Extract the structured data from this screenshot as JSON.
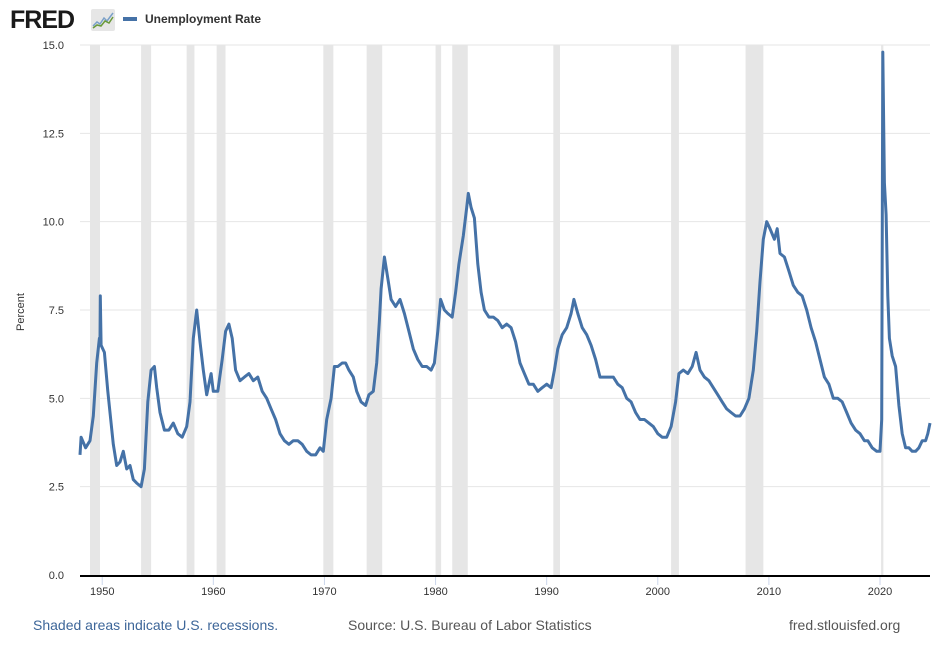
{
  "header": {
    "logo_text": "FRED",
    "logo_icon": "line-chart-icon",
    "legend_label": "Unemployment Rate"
  },
  "footer": {
    "recession_note": "Shaded areas indicate U.S. recessions.",
    "source": "Source: U.S. Bureau of Labor Statistics",
    "site": "fred.stlouisfed.org"
  },
  "colors": {
    "series": "#4572a7",
    "recession": "#e6e6e6",
    "grid": "#e6e6e6",
    "axis": "#000000"
  },
  "chart_data": {
    "type": "line",
    "title": "",
    "xlabel": "",
    "ylabel": "Percent",
    "xlim": [
      1948.0,
      2024.5
    ],
    "ylim": [
      0,
      15
    ],
    "grid": true,
    "legend": "top-left",
    "y_ticks": [
      "0.0",
      "2.5",
      "5.0",
      "7.5",
      "10.0",
      "12.5",
      "15.0"
    ],
    "y_tick_values": [
      0,
      2.5,
      5,
      7.5,
      10,
      12.5,
      15
    ],
    "x_ticks": [
      "1950",
      "1960",
      "1970",
      "1980",
      "1990",
      "2000",
      "2010",
      "2020"
    ],
    "x_tick_values": [
      1950,
      1960,
      1970,
      1980,
      1990,
      2000,
      2010,
      2020
    ],
    "recessions": [
      [
        1948.9,
        1949.8
      ],
      [
        1953.5,
        1954.4
      ],
      [
        1957.6,
        1958.3
      ],
      [
        1960.3,
        1961.1
      ],
      [
        1969.9,
        1970.8
      ],
      [
        1973.8,
        1975.2
      ],
      [
        1980.0,
        1980.5
      ],
      [
        1981.5,
        1982.9
      ],
      [
        1990.6,
        1991.2
      ],
      [
        2001.2,
        2001.9
      ],
      [
        2007.9,
        2009.5
      ],
      [
        2020.1,
        2020.3
      ]
    ],
    "series": [
      {
        "name": "Unemployment Rate",
        "points": [
          [
            1948.0,
            3.4
          ],
          [
            1948.1,
            3.9
          ],
          [
            1948.5,
            3.6
          ],
          [
            1948.9,
            3.8
          ],
          [
            1949.2,
            4.5
          ],
          [
            1949.5,
            6.0
          ],
          [
            1949.75,
            6.7
          ],
          [
            1949.8,
            6.6
          ],
          [
            1949.83,
            7.9
          ],
          [
            1949.9,
            6.5
          ],
          [
            1950.2,
            6.3
          ],
          [
            1950.5,
            5.2
          ],
          [
            1950.8,
            4.3
          ],
          [
            1951.0,
            3.7
          ],
          [
            1951.3,
            3.1
          ],
          [
            1951.6,
            3.2
          ],
          [
            1951.9,
            3.5
          ],
          [
            1952.2,
            3.0
          ],
          [
            1952.5,
            3.1
          ],
          [
            1952.8,
            2.7
          ],
          [
            1953.1,
            2.6
          ],
          [
            1953.5,
            2.5
          ],
          [
            1953.8,
            3.0
          ],
          [
            1954.1,
            4.9
          ],
          [
            1954.4,
            5.8
          ],
          [
            1954.7,
            5.9
          ],
          [
            1954.9,
            5.3
          ],
          [
            1955.2,
            4.6
          ],
          [
            1955.6,
            4.1
          ],
          [
            1956.0,
            4.1
          ],
          [
            1956.4,
            4.3
          ],
          [
            1956.8,
            4.0
          ],
          [
            1957.2,
            3.9
          ],
          [
            1957.6,
            4.2
          ],
          [
            1957.9,
            4.9
          ],
          [
            1958.2,
            6.7
          ],
          [
            1958.5,
            7.5
          ],
          [
            1958.8,
            6.6
          ],
          [
            1959.1,
            5.8
          ],
          [
            1959.4,
            5.1
          ],
          [
            1959.8,
            5.7
          ],
          [
            1960.0,
            5.2
          ],
          [
            1960.4,
            5.2
          ],
          [
            1960.8,
            6.1
          ],
          [
            1961.1,
            6.9
          ],
          [
            1961.4,
            7.1
          ],
          [
            1961.7,
            6.7
          ],
          [
            1962.0,
            5.8
          ],
          [
            1962.4,
            5.5
          ],
          [
            1962.8,
            5.6
          ],
          [
            1963.2,
            5.7
          ],
          [
            1963.6,
            5.5
          ],
          [
            1964.0,
            5.6
          ],
          [
            1964.4,
            5.2
          ],
          [
            1964.8,
            5.0
          ],
          [
            1965.2,
            4.7
          ],
          [
            1965.6,
            4.4
          ],
          [
            1966.0,
            4.0
          ],
          [
            1966.4,
            3.8
          ],
          [
            1966.8,
            3.7
          ],
          [
            1967.2,
            3.8
          ],
          [
            1967.6,
            3.8
          ],
          [
            1968.0,
            3.7
          ],
          [
            1968.4,
            3.5
          ],
          [
            1968.8,
            3.4
          ],
          [
            1969.2,
            3.4
          ],
          [
            1969.6,
            3.6
          ],
          [
            1969.9,
            3.5
          ],
          [
            1970.2,
            4.4
          ],
          [
            1970.6,
            5.0
          ],
          [
            1970.9,
            5.9
          ],
          [
            1971.2,
            5.9
          ],
          [
            1971.6,
            6.0
          ],
          [
            1971.9,
            6.0
          ],
          [
            1972.2,
            5.8
          ],
          [
            1972.6,
            5.6
          ],
          [
            1972.9,
            5.2
          ],
          [
            1973.3,
            4.9
          ],
          [
            1973.7,
            4.8
          ],
          [
            1974.0,
            5.1
          ],
          [
            1974.4,
            5.2
          ],
          [
            1974.7,
            6.0
          ],
          [
            1974.95,
            7.2
          ],
          [
            1975.1,
            8.1
          ],
          [
            1975.4,
            9.0
          ],
          [
            1975.7,
            8.4
          ],
          [
            1976.0,
            7.8
          ],
          [
            1976.4,
            7.6
          ],
          [
            1976.8,
            7.8
          ],
          [
            1977.2,
            7.4
          ],
          [
            1977.6,
            6.9
          ],
          [
            1978.0,
            6.4
          ],
          [
            1978.4,
            6.1
          ],
          [
            1978.8,
            5.9
          ],
          [
            1979.2,
            5.9
          ],
          [
            1979.6,
            5.8
          ],
          [
            1979.9,
            6.0
          ],
          [
            1980.2,
            6.9
          ],
          [
            1980.45,
            7.8
          ],
          [
            1980.8,
            7.5
          ],
          [
            1981.1,
            7.4
          ],
          [
            1981.5,
            7.3
          ],
          [
            1981.8,
            8.0
          ],
          [
            1982.1,
            8.8
          ],
          [
            1982.5,
            9.6
          ],
          [
            1982.8,
            10.4
          ],
          [
            1982.95,
            10.8
          ],
          [
            1983.2,
            10.4
          ],
          [
            1983.5,
            10.1
          ],
          [
            1983.8,
            8.8
          ],
          [
            1984.1,
            8.0
          ],
          [
            1984.4,
            7.5
          ],
          [
            1984.8,
            7.3
          ],
          [
            1985.2,
            7.3
          ],
          [
            1985.6,
            7.2
          ],
          [
            1986.0,
            7.0
          ],
          [
            1986.4,
            7.1
          ],
          [
            1986.8,
            7.0
          ],
          [
            1987.2,
            6.6
          ],
          [
            1987.6,
            6.0
          ],
          [
            1988.0,
            5.7
          ],
          [
            1988.4,
            5.4
          ],
          [
            1988.8,
            5.4
          ],
          [
            1989.2,
            5.2
          ],
          [
            1989.6,
            5.3
          ],
          [
            1990.0,
            5.4
          ],
          [
            1990.4,
            5.3
          ],
          [
            1990.7,
            5.8
          ],
          [
            1991.0,
            6.4
          ],
          [
            1991.4,
            6.8
          ],
          [
            1991.8,
            7.0
          ],
          [
            1992.2,
            7.4
          ],
          [
            1992.45,
            7.8
          ],
          [
            1992.8,
            7.4
          ],
          [
            1993.2,
            7.0
          ],
          [
            1993.6,
            6.8
          ],
          [
            1994.0,
            6.5
          ],
          [
            1994.4,
            6.1
          ],
          [
            1994.8,
            5.6
          ],
          [
            1995.2,
            5.6
          ],
          [
            1995.6,
            5.6
          ],
          [
            1996.0,
            5.6
          ],
          [
            1996.4,
            5.4
          ],
          [
            1996.8,
            5.3
          ],
          [
            1997.2,
            5.0
          ],
          [
            1997.6,
            4.9
          ],
          [
            1998.0,
            4.6
          ],
          [
            1998.4,
            4.4
          ],
          [
            1998.8,
            4.4
          ],
          [
            1999.2,
            4.3
          ],
          [
            1999.6,
            4.2
          ],
          [
            2000.0,
            4.0
          ],
          [
            2000.4,
            3.9
          ],
          [
            2000.8,
            3.9
          ],
          [
            2001.2,
            4.2
          ],
          [
            2001.6,
            4.9
          ],
          [
            2001.9,
            5.7
          ],
          [
            2002.3,
            5.8
          ],
          [
            2002.7,
            5.7
          ],
          [
            2003.1,
            5.9
          ],
          [
            2003.45,
            6.3
          ],
          [
            2003.8,
            5.8
          ],
          [
            2004.2,
            5.6
          ],
          [
            2004.6,
            5.5
          ],
          [
            2005.0,
            5.3
          ],
          [
            2005.4,
            5.1
          ],
          [
            2005.8,
            4.9
          ],
          [
            2006.2,
            4.7
          ],
          [
            2006.6,
            4.6
          ],
          [
            2007.0,
            4.5
          ],
          [
            2007.4,
            4.5
          ],
          [
            2007.8,
            4.7
          ],
          [
            2008.2,
            5.0
          ],
          [
            2008.6,
            5.8
          ],
          [
            2008.9,
            6.9
          ],
          [
            2009.2,
            8.3
          ],
          [
            2009.5,
            9.5
          ],
          [
            2009.8,
            10.0
          ],
          [
            2010.1,
            9.8
          ],
          [
            2010.5,
            9.5
          ],
          [
            2010.75,
            9.8
          ],
          [
            2011.0,
            9.1
          ],
          [
            2011.4,
            9.0
          ],
          [
            2011.8,
            8.6
          ],
          [
            2012.2,
            8.2
          ],
          [
            2012.6,
            8.0
          ],
          [
            2013.0,
            7.9
          ],
          [
            2013.4,
            7.5
          ],
          [
            2013.8,
            7.0
          ],
          [
            2014.2,
            6.6
          ],
          [
            2014.6,
            6.1
          ],
          [
            2015.0,
            5.6
          ],
          [
            2015.4,
            5.4
          ],
          [
            2015.8,
            5.0
          ],
          [
            2016.2,
            5.0
          ],
          [
            2016.6,
            4.9
          ],
          [
            2017.0,
            4.6
          ],
          [
            2017.4,
            4.3
          ],
          [
            2017.8,
            4.1
          ],
          [
            2018.2,
            4.0
          ],
          [
            2018.6,
            3.8
          ],
          [
            2018.9,
            3.8
          ],
          [
            2019.3,
            3.6
          ],
          [
            2019.7,
            3.5
          ],
          [
            2020.0,
            3.5
          ],
          [
            2020.15,
            4.4
          ],
          [
            2020.25,
            14.8
          ],
          [
            2020.4,
            11.1
          ],
          [
            2020.55,
            10.2
          ],
          [
            2020.7,
            7.9
          ],
          [
            2020.85,
            6.7
          ],
          [
            2021.1,
            6.2
          ],
          [
            2021.4,
            5.9
          ],
          [
            2021.7,
            4.8
          ],
          [
            2022.0,
            4.0
          ],
          [
            2022.3,
            3.6
          ],
          [
            2022.6,
            3.6
          ],
          [
            2022.9,
            3.5
          ],
          [
            2023.2,
            3.5
          ],
          [
            2023.5,
            3.6
          ],
          [
            2023.8,
            3.8
          ],
          [
            2024.1,
            3.8
          ],
          [
            2024.3,
            4.0
          ],
          [
            2024.5,
            4.3
          ]
        ]
      }
    ]
  }
}
